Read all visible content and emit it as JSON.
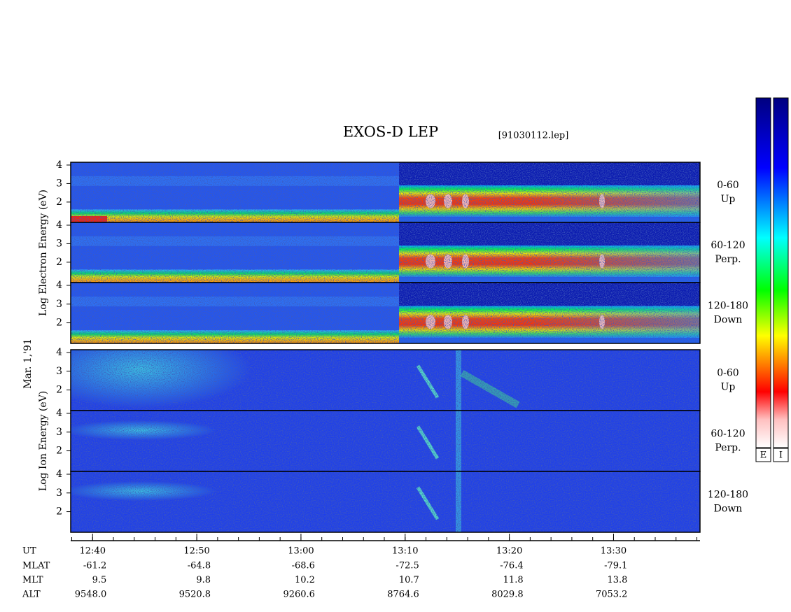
{
  "header": {
    "title": "EXOS-D LEP",
    "file": "[91030112.lep]"
  },
  "chart_data": {
    "type": "spectrogram",
    "date": "Mar. 1,'91",
    "xlim": [
      37.9,
      98.3
    ],
    "xticks": [
      {
        "value": 40,
        "label": "12:40"
      },
      {
        "value": 50,
        "label": "12:50"
      },
      {
        "value": 60,
        "label": "13:00"
      },
      {
        "value": 70,
        "label": "13:10"
      },
      {
        "value": 80,
        "label": "13:20"
      },
      {
        "value": 90,
        "label": "13:30"
      }
    ],
    "groups": [
      {
        "label": "Log Electron Energy (eV)",
        "ylim": [
          0.9,
          4.15
        ],
        "yticks": [
          2,
          3,
          4
        ],
        "panels": [
          {
            "pitch": "0-60",
            "direction": "Up"
          },
          {
            "pitch": "60-120",
            "direction": "Perp."
          },
          {
            "pitch": "120-180",
            "direction": "Down"
          }
        ]
      },
      {
        "label": "Log Ion Energy (eV)",
        "ylim": [
          0.9,
          4.15
        ],
        "yticks": [
          2,
          3,
          4
        ],
        "panels": [
          {
            "pitch": "0-60",
            "direction": "Up"
          },
          {
            "pitch": "60-120",
            "direction": "Perp."
          },
          {
            "pitch": "120-180",
            "direction": "Down"
          }
        ]
      }
    ],
    "colorbars": [
      "E",
      "I"
    ],
    "ephemeris": {
      "time_label": "UT",
      "rows": [
        {
          "label": "MLAT",
          "values": [
            "-61.2",
            "-64.8",
            "-68.6",
            "-72.5",
            "-76.4",
            "-79.1"
          ]
        },
        {
          "label": "MLT",
          "values": [
            "9.5",
            "9.8",
            "10.2",
            "10.7",
            "11.8",
            "13.8"
          ]
        },
        {
          "label": "ALT",
          "values": [
            "9548.0",
            "9520.8",
            "9260.6",
            "8764.6",
            "8029.8",
            "7053.2"
          ]
        }
      ]
    }
  }
}
